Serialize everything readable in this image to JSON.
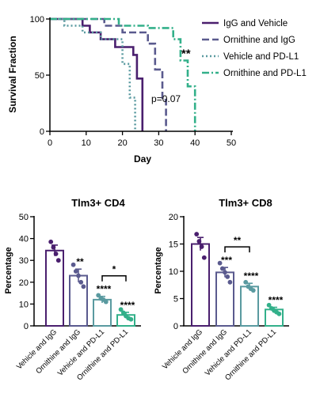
{
  "colors": {
    "igg_vehicle": "#4a1f6e",
    "orn_igg": "#5a5a8e",
    "veh_pdl1": "#5a9aa0",
    "orn_pdl1": "#33b08a"
  },
  "chart_data": [
    {
      "type": "line",
      "subtype": "survival-step",
      "title": "",
      "xlabel": "Day",
      "ylabel": "Survival Fraction",
      "xlim": [
        0,
        50
      ],
      "ylim": [
        0,
        100
      ],
      "xticks": [
        "0",
        "10",
        "20",
        "30",
        "40",
        "50"
      ],
      "yticks": [
        "0",
        "50",
        "100"
      ],
      "legend_position": "top-right",
      "series": [
        {
          "name": "IgG and Vehicle",
          "style": "solid",
          "steps": [
            [
              0,
              100
            ],
            [
              9,
              100
            ],
            [
              9,
              94
            ],
            [
              11,
              94
            ],
            [
              11,
              88
            ],
            [
              14,
              88
            ],
            [
              14,
              82
            ],
            [
              18,
              82
            ],
            [
              18,
              75
            ],
            [
              23,
              75
            ],
            [
              23,
              68
            ],
            [
              24,
              68
            ],
            [
              24,
              47
            ],
            [
              25.5,
              47
            ],
            [
              25.5,
              0
            ]
          ]
        },
        {
          "name": "Ornithine and IgG",
          "style": "dash",
          "steps": [
            [
              0,
              100
            ],
            [
              15,
              100
            ],
            [
              15,
              94
            ],
            [
              20,
              94
            ],
            [
              20,
              88
            ],
            [
              27,
              88
            ],
            [
              27,
              78
            ],
            [
              29,
              78
            ],
            [
              29,
              55
            ],
            [
              31,
              55
            ],
            [
              31,
              28
            ],
            [
              32,
              28
            ],
            [
              32,
              0
            ]
          ]
        },
        {
          "name": "Vehicle and PD-L1",
          "style": "dot",
          "steps": [
            [
              0,
              100
            ],
            [
              4,
              100
            ],
            [
              4,
              94
            ],
            [
              9,
              94
            ],
            [
              9,
              88
            ],
            [
              14,
              88
            ],
            [
              14,
              82
            ],
            [
              20,
              82
            ],
            [
              20,
              60
            ],
            [
              22,
              60
            ],
            [
              22,
              30
            ],
            [
              23.5,
              30
            ],
            [
              23.5,
              0
            ]
          ]
        },
        {
          "name": "Ornithine and PD-L1",
          "style": "dashdot",
          "steps": [
            [
              0,
              100
            ],
            [
              19,
              100
            ],
            [
              19,
              94
            ],
            [
              27,
              94
            ],
            [
              27,
              92
            ],
            [
              34,
              92
            ],
            [
              34,
              82
            ],
            [
              36,
              82
            ],
            [
              36,
              63
            ],
            [
              38,
              63
            ],
            [
              38,
              40
            ],
            [
              40,
              40
            ],
            [
              40,
              0
            ]
          ]
        }
      ],
      "annotations": [
        {
          "text": "**",
          "x": 37.5,
          "y": 66
        },
        {
          "text": "p=0.07",
          "x": 32,
          "y": 26
        }
      ]
    },
    {
      "type": "bar",
      "title": "Tlm3+ CD4",
      "ylabel": "Percentage",
      "ylim": [
        0,
        50
      ],
      "yticks": [
        "0",
        "10",
        "20",
        "30",
        "40",
        "50"
      ],
      "categories": [
        "Vehicle and IgG",
        "Ornithine and IgG",
        "Vehicle and PD-L1",
        "Ornithine and PD-L1"
      ],
      "values": [
        34.5,
        23,
        12,
        5
      ],
      "errors": [
        2.5,
        3,
        1.5,
        1.2
      ],
      "points": [
        [
          38.5,
          36,
          33,
          30
        ],
        [
          28,
          25,
          23,
          20,
          18
        ],
        [
          14,
          12.5,
          12,
          11
        ],
        [
          7.5,
          6,
          4.5,
          3.5,
          3
        ]
      ],
      "significance": [
        "",
        "**",
        "****",
        "****"
      ],
      "comparisons": [
        {
          "from": 2,
          "to": 3,
          "label": "*"
        }
      ]
    },
    {
      "type": "bar",
      "title": "Tlm3+ CD8",
      "ylabel": "Percentage",
      "ylim": [
        0,
        20
      ],
      "yticks": [
        "0",
        "5",
        "10",
        "15",
        "20"
      ],
      "categories": [
        "Vehicle and IgG",
        "Ornithine and IgG",
        "Vehicle and PD-L1",
        "Ornithine and PD-L1"
      ],
      "values": [
        15,
        9.8,
        7.2,
        3
      ],
      "errors": [
        1.2,
        0.9,
        0.6,
        0.4
      ],
      "points": [
        [
          16.8,
          15.5,
          14.5,
          12.5
        ],
        [
          11.5,
          10.5,
          9.8,
          9,
          8
        ],
        [
          8,
          7.2,
          6.8,
          6.5
        ],
        [
          3.8,
          3.2,
          2.8,
          2.5,
          2.2
        ]
      ],
      "significance": [
        "",
        "***",
        "****",
        "****"
      ],
      "comparisons": [
        {
          "from": 1,
          "to": 2,
          "label": "**"
        }
      ]
    }
  ]
}
